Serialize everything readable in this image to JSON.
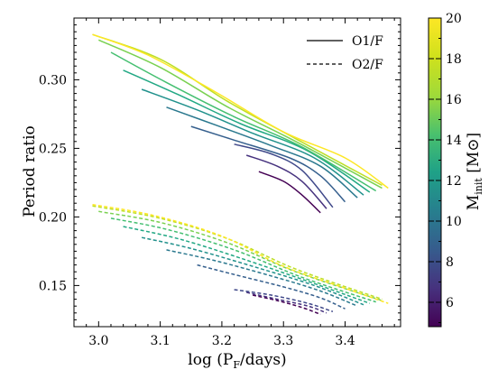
{
  "chart_data": {
    "type": "line",
    "xlabel": "log (P F/days)",
    "xlabel_main": "log (P",
    "xlabel_sub": "F",
    "xlabel_tail": "/days)",
    "ylabel": "Period ratio",
    "xlim": [
      2.96,
      3.49
    ],
    "ylim": [
      0.12,
      0.345
    ],
    "xticks": [
      3.0,
      3.1,
      3.2,
      3.3,
      3.4
    ],
    "yticks": [
      0.15,
      0.2,
      0.25,
      0.3
    ],
    "legend": {
      "position": "top-right",
      "entries": [
        {
          "label": "O1/F",
          "style": "solid"
        },
        {
          "label": "O2/F",
          "style": "dashed"
        }
      ]
    },
    "colorbar": {
      "label": "M_init [M⊙]",
      "label_main": "M",
      "label_sub": "init",
      "label_tail": " [M",
      "label_sun": "⊙",
      "label_close": "]",
      "range": [
        4.8,
        20
      ],
      "ticks": [
        6,
        8,
        10,
        12,
        14,
        16,
        18,
        20
      ],
      "colormap": "viridis"
    },
    "series": [
      {
        "mass": 5,
        "color": "#440154",
        "o1": [
          [
            3.26,
            0.233
          ],
          [
            3.3,
            0.226
          ],
          [
            3.33,
            0.216
          ],
          [
            3.36,
            0.203
          ]
        ],
        "o2": [
          [
            3.25,
            0.143
          ],
          [
            3.29,
            0.139
          ],
          [
            3.33,
            0.134
          ],
          [
            3.36,
            0.129
          ]
        ]
      },
      {
        "mass": 6,
        "color": "#46327e",
        "o1": [
          [
            3.24,
            0.245
          ],
          [
            3.29,
            0.237
          ],
          [
            3.33,
            0.226
          ],
          [
            3.37,
            0.206
          ]
        ],
        "o2": [
          [
            3.24,
            0.145
          ],
          [
            3.29,
            0.14
          ],
          [
            3.34,
            0.135
          ],
          [
            3.37,
            0.13
          ]
        ]
      },
      {
        "mass": 7,
        "color": "#3f4889",
        "o1": [
          [
            3.22,
            0.253
          ],
          [
            3.28,
            0.246
          ],
          [
            3.33,
            0.234
          ],
          [
            3.38,
            0.207
          ]
        ],
        "o2": [
          [
            3.22,
            0.147
          ],
          [
            3.28,
            0.143
          ],
          [
            3.34,
            0.137
          ],
          [
            3.38,
            0.131
          ]
        ]
      },
      {
        "mass": 9,
        "color": "#355f8d",
        "o1": [
          [
            3.15,
            0.266
          ],
          [
            3.22,
            0.256
          ],
          [
            3.31,
            0.243
          ],
          [
            3.36,
            0.23
          ],
          [
            3.4,
            0.211
          ]
        ],
        "o2": [
          [
            3.16,
            0.165
          ],
          [
            3.22,
            0.158
          ],
          [
            3.3,
            0.149
          ],
          [
            3.36,
            0.141
          ],
          [
            3.4,
            0.133
          ]
        ]
      },
      {
        "mass": 11,
        "color": "#2a788e",
        "o1": [
          [
            3.11,
            0.28
          ],
          [
            3.19,
            0.267
          ],
          [
            3.28,
            0.252
          ],
          [
            3.36,
            0.237
          ],
          [
            3.42,
            0.214
          ]
        ],
        "o2": [
          [
            3.11,
            0.176
          ],
          [
            3.19,
            0.168
          ],
          [
            3.28,
            0.157
          ],
          [
            3.36,
            0.146
          ],
          [
            3.42,
            0.135
          ]
        ]
      },
      {
        "mass": 12,
        "color": "#21918c",
        "o1": [
          [
            3.07,
            0.293
          ],
          [
            3.16,
            0.278
          ],
          [
            3.25,
            0.261
          ],
          [
            3.35,
            0.243
          ],
          [
            3.43,
            0.216
          ]
        ],
        "o2": [
          [
            3.07,
            0.185
          ],
          [
            3.15,
            0.177
          ],
          [
            3.25,
            0.164
          ],
          [
            3.35,
            0.15
          ],
          [
            3.43,
            0.136
          ]
        ]
      },
      {
        "mass": 14,
        "color": "#22a884",
        "o1": [
          [
            3.04,
            0.307
          ],
          [
            3.13,
            0.289
          ],
          [
            3.23,
            0.268
          ],
          [
            3.34,
            0.248
          ],
          [
            3.44,
            0.218
          ]
        ],
        "o2": [
          [
            3.04,
            0.193
          ],
          [
            3.13,
            0.184
          ],
          [
            3.23,
            0.17
          ],
          [
            3.34,
            0.153
          ],
          [
            3.44,
            0.137
          ]
        ]
      },
      {
        "mass": 15,
        "color": "#44bf70",
        "o1": [
          [
            3.02,
            0.32
          ],
          [
            3.11,
            0.298
          ],
          [
            3.22,
            0.273
          ],
          [
            3.33,
            0.251
          ],
          [
            3.45,
            0.219
          ]
        ],
        "o2": [
          [
            3.02,
            0.199
          ],
          [
            3.11,
            0.191
          ],
          [
            3.22,
            0.176
          ],
          [
            3.33,
            0.156
          ],
          [
            3.45,
            0.138
          ]
        ]
      },
      {
        "mass": 17,
        "color": "#7ad151",
        "o1": [
          [
            3.0,
            0.329
          ],
          [
            3.1,
            0.309
          ],
          [
            3.21,
            0.28
          ],
          [
            3.32,
            0.255
          ],
          [
            3.46,
            0.221
          ]
        ],
        "o2": [
          [
            3.0,
            0.204
          ],
          [
            3.1,
            0.196
          ],
          [
            3.21,
            0.181
          ],
          [
            3.32,
            0.16
          ],
          [
            3.46,
            0.139
          ]
        ]
      },
      {
        "mass": 19,
        "color": "#bddf26",
        "o1": [
          [
            2.99,
            0.333
          ],
          [
            3.1,
            0.315
          ],
          [
            3.21,
            0.284
          ],
          [
            3.32,
            0.257
          ],
          [
            3.46,
            0.223
          ]
        ],
        "o2": [
          [
            2.99,
            0.208
          ],
          [
            3.1,
            0.199
          ],
          [
            3.21,
            0.184
          ],
          [
            3.32,
            0.162
          ],
          [
            3.46,
            0.14
          ]
        ]
      },
      {
        "mass": 20,
        "color": "#fde725",
        "o1": [
          [
            2.99,
            0.333
          ],
          [
            3.08,
            0.318
          ],
          [
            3.19,
            0.291
          ],
          [
            3.3,
            0.262
          ],
          [
            3.4,
            0.243
          ],
          [
            3.47,
            0.221
          ]
        ],
        "o2": [
          [
            2.99,
            0.209
          ],
          [
            3.09,
            0.201
          ],
          [
            3.2,
            0.186
          ],
          [
            3.3,
            0.164
          ],
          [
            3.4,
            0.148
          ],
          [
            3.47,
            0.137
          ]
        ]
      }
    ]
  }
}
